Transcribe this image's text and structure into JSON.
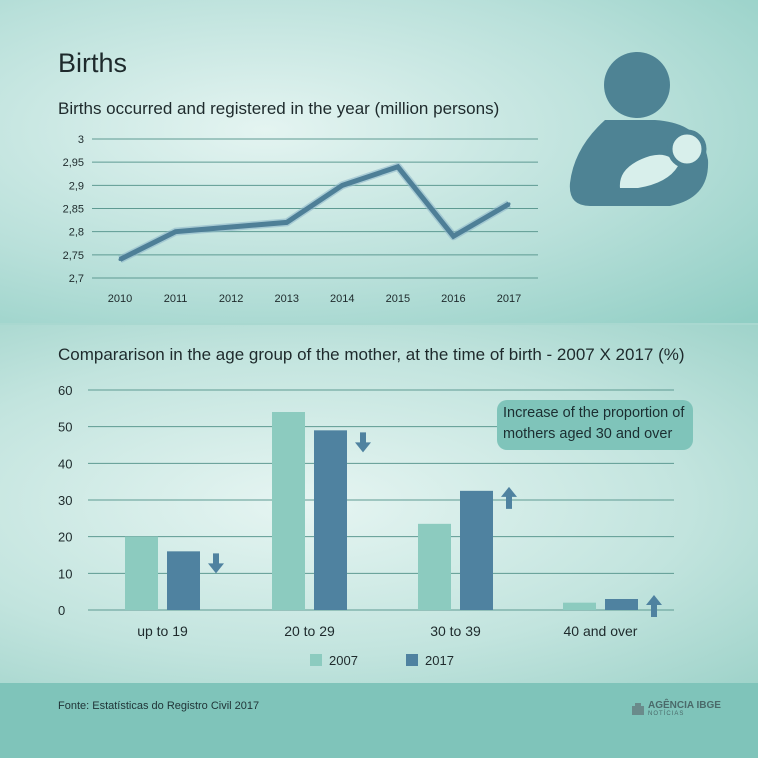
{
  "title": "Births",
  "source": "Fonte: Estatísticas do Registro Civil 2017",
  "brand": {
    "name": "AGÊNCIA IBGE",
    "sub": "NOTÍCIAS"
  },
  "icon": "mother-baby-icon",
  "colors": {
    "line": "#4e7f97",
    "bar2007": "#8ccbbf",
    "bar2017": "#4f82a0",
    "icon": "#4e8394",
    "arrow": "#4f82a0",
    "callout": "#7fc4ba"
  },
  "callout": "Increase of the proportion of mothers aged 30 and over",
  "chart_data": [
    {
      "type": "line",
      "title": "Births occurred and registered in the year (million persons)",
      "x": [
        "2010",
        "2011",
        "2012",
        "2013",
        "2014",
        "2015",
        "2016",
        "2017"
      ],
      "series": [
        {
          "values": [
            2.74,
            2.8,
            2.81,
            2.82,
            2.9,
            2.94,
            2.79,
            2.86
          ]
        }
      ],
      "yticks": [
        "2,7",
        "2,75",
        "2,8",
        "2,85",
        "2,9",
        "2,95",
        "3"
      ],
      "ylim": [
        2.7,
        3.0
      ],
      "grid": true
    },
    {
      "type": "bar",
      "title": "Compararison in the age group of the mother, at the time of birth - 2007 X 2017 (%)",
      "categories": [
        "up to 19",
        "20 to 29",
        "30 to 39",
        "40 and over"
      ],
      "series": [
        {
          "name": "2007",
          "values": [
            20,
            54,
            23.5,
            2
          ]
        },
        {
          "name": "2017",
          "values": [
            16,
            49,
            32.5,
            3
          ]
        }
      ],
      "trend": [
        "down",
        "down",
        "up",
        "up"
      ],
      "yticks": [
        "0",
        "10",
        "20",
        "30",
        "40",
        "50",
        "60"
      ],
      "ylim": [
        0,
        60
      ],
      "grid": true,
      "legend": "bottom"
    }
  ]
}
